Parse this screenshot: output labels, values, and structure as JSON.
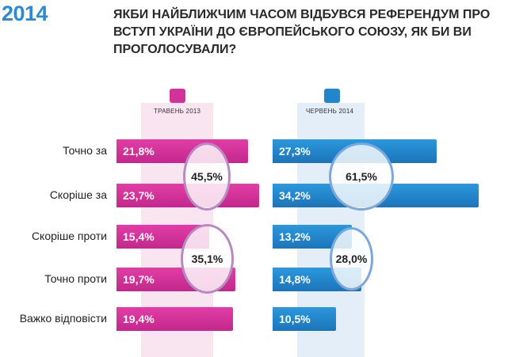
{
  "header": {
    "year": "2014",
    "title_lines": [
      "ЯКБИ НАЙБЛИЖЧИМ ЧАСОМ ВІДБУВСЯ РЕФЕРЕНДУМ ПРО",
      "ВСТУП УКРАЇНИ ДО ЄВРОПЕЙСЬКОГО СОЮЗУ, ЯК БИ ВИ",
      "ПРОГОЛОСУВАЛИ?"
    ]
  },
  "colors": {
    "brand": "#2b8ad3",
    "pink": "#d1339a",
    "blue": "#2585ca"
  },
  "chart_data": {
    "type": "bar",
    "orientation": "horizontal",
    "categories": [
      "Точно за",
      "Скоріше за",
      "Скоріше проти",
      "Точно проти",
      "Важко відповісти"
    ],
    "series": [
      {
        "name": "ТРАВЕНЬ 2013",
        "values": [
          21.8,
          23.7,
          15.4,
          19.7,
          19.4
        ],
        "labels": [
          "21,8%",
          "23,7%",
          "15,4%",
          "19,7%",
          "19,4%"
        ]
      },
      {
        "name": "ЧЕРВЕНЬ 2014",
        "values": [
          27.3,
          34.2,
          13.2,
          14.8,
          10.5
        ],
        "labels": [
          "27,3%",
          "34,2%",
          "13,2%",
          "14,8%",
          "10,5%"
        ]
      }
    ],
    "annotations": [
      {
        "series": "ТРАВЕНЬ 2013",
        "groups": [
          "Точно за",
          "Скоріше за"
        ],
        "value": 45.5,
        "label": "45,5%"
      },
      {
        "series": "ТРАВЕНЬ 2013",
        "groups": [
          "Скоріше проти",
          "Точно проти"
        ],
        "value": 35.1,
        "label": "35,1%"
      },
      {
        "series": "ЧЕРВЕНЬ 2014",
        "groups": [
          "Точно за",
          "Скоріше за"
        ],
        "value": 61.5,
        "label": "61,5%"
      },
      {
        "series": "ЧЕРВЕНЬ 2014",
        "groups": [
          "Скоріше проти",
          "Точно проти"
        ],
        "value": 28.0,
        "label": "28,0%"
      }
    ],
    "title": "",
    "xlabel": "",
    "ylabel": "",
    "grid": false,
    "legend": "top"
  }
}
